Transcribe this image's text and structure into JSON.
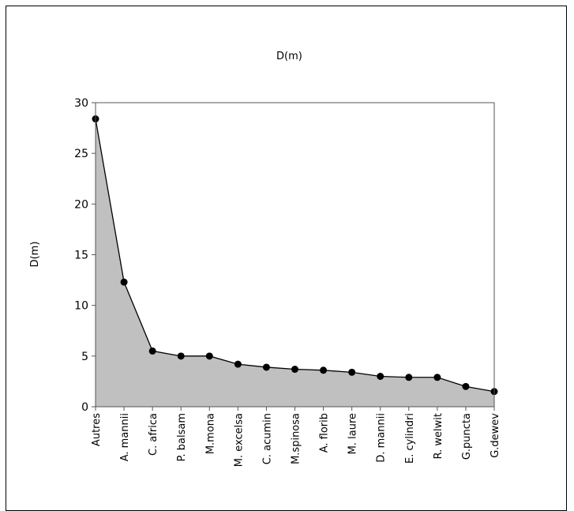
{
  "chart_data": {
    "type": "area",
    "title": "D(m)",
    "ylabel": "D(m)",
    "xlabel": "",
    "ylim": [
      0,
      30
    ],
    "yticks": [
      "0",
      "5",
      "10",
      "15",
      "20",
      "25",
      "30"
    ],
    "categories": [
      "Autres",
      "A. mannii",
      "C. africa",
      "P. balsam",
      "M.mona",
      "M. excelsa",
      "C. acumin",
      "M.spinosa",
      "A. florib",
      "M. laure",
      "D. mannii",
      "E. cylindri",
      "R. welwit",
      "G.puncta",
      "G.dewev"
    ],
    "values": [
      28.4,
      12.3,
      5.5,
      5.0,
      5.0,
      4.2,
      3.9,
      3.7,
      3.6,
      3.4,
      3.0,
      2.9,
      2.9,
      2.0,
      1.5
    ],
    "grid": false,
    "colors": {
      "fill": "#c0c0c0",
      "line": "#000000",
      "marker": "#000000"
    }
  }
}
